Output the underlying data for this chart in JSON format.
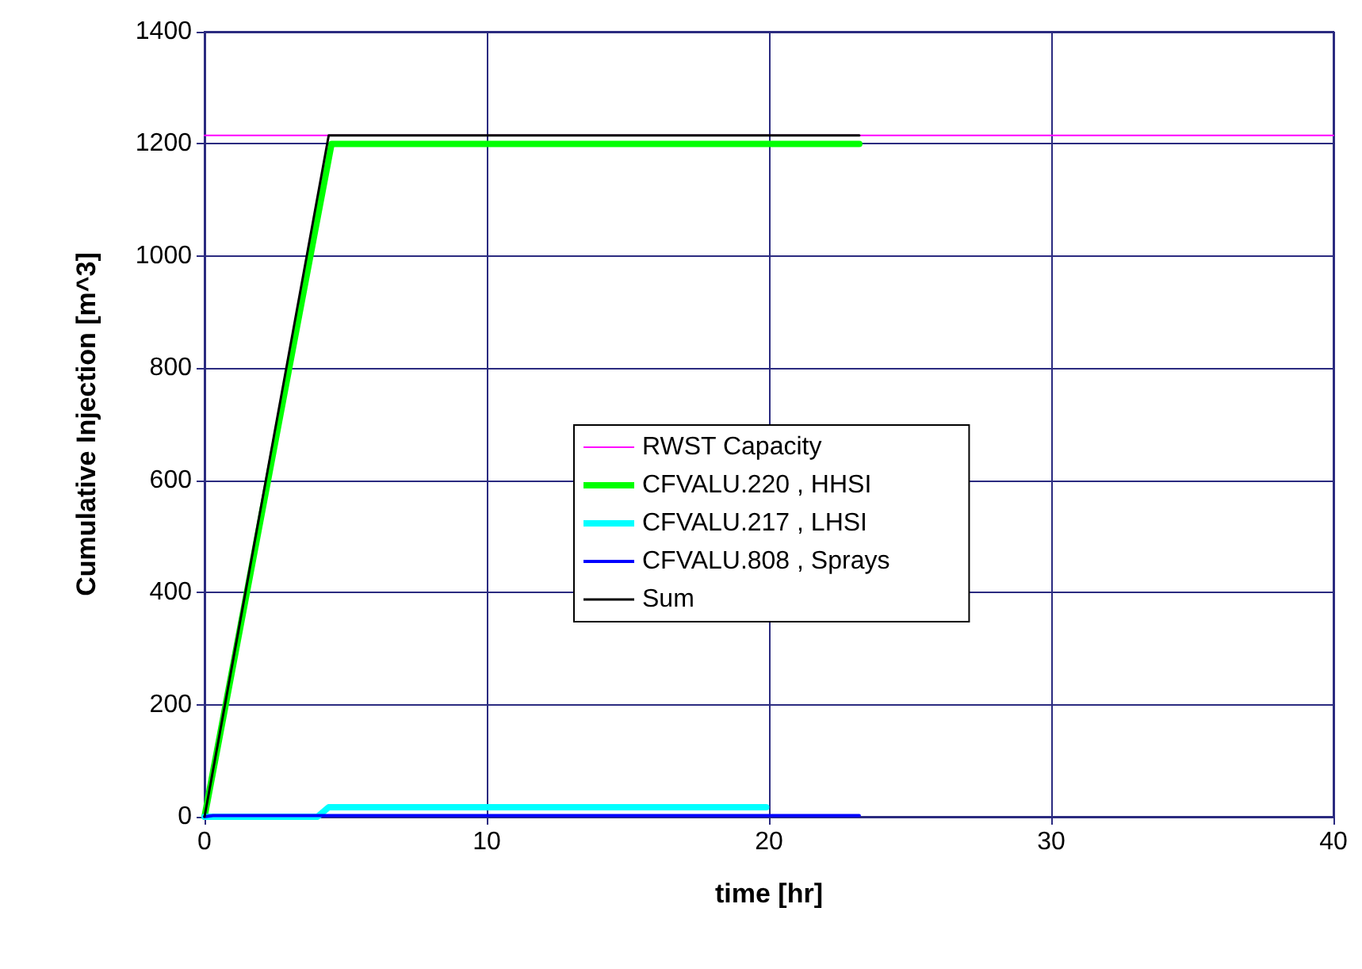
{
  "chart_data": {
    "type": "line",
    "xlabel": "time [hr]",
    "ylabel": "Cumulative Injection [m^3]",
    "xlim": [
      0,
      40
    ],
    "xticks": [
      0,
      10,
      20,
      30,
      40
    ],
    "ylim": [
      0,
      1400
    ],
    "yticks": [
      0,
      200,
      400,
      600,
      800,
      1000,
      1200,
      1400
    ],
    "grid": true,
    "legend": "right",
    "marker": "none",
    "line_style": "solid",
    "series": [
      {
        "name": "RWST Capacity",
        "color": "#ff00ff",
        "x": [
          0,
          40
        ],
        "values": [
          1215,
          1215
        ]
      },
      {
        "name": "CFVALU.220 , HHSI",
        "color": "#00ff00",
        "x": [
          0,
          4.5,
          23.2
        ],
        "values": [
          0,
          1200,
          1200
        ]
      },
      {
        "name": "CFVALU.217 , LHSI",
        "color": "#00ffff",
        "x": [
          0,
          4.0,
          4.4,
          19.9
        ],
        "values": [
          0,
          0,
          17,
          17
        ]
      },
      {
        "name": "CFVALU.808 , Sprays",
        "color": "#0000ff",
        "x": [
          0,
          0.3,
          23.2
        ],
        "values": [
          0,
          2,
          2
        ]
      },
      {
        "name": "Sum",
        "color": "#000000",
        "x": [
          0,
          4.4,
          23.2
        ],
        "values": [
          0,
          1215,
          1215
        ]
      }
    ]
  }
}
